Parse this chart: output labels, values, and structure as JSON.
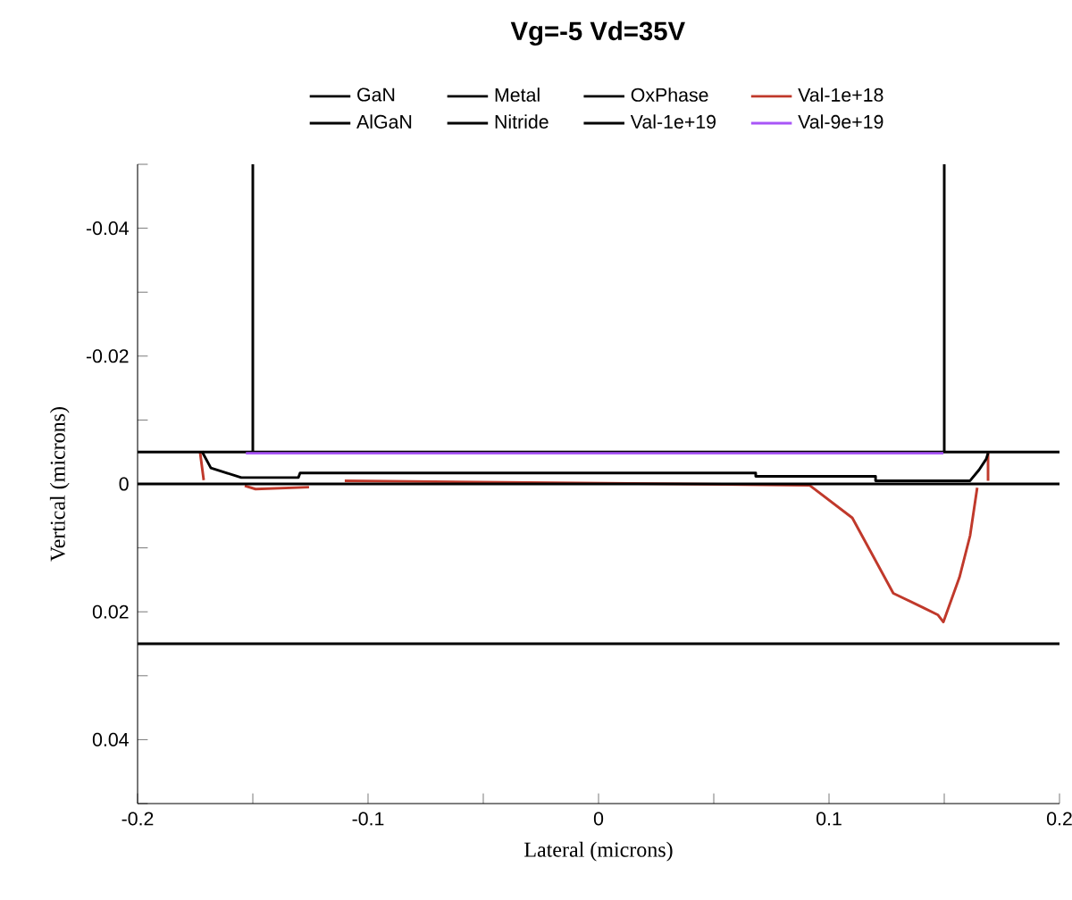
{
  "chart_data": {
    "type": "line",
    "title": "Vg=-5 Vd=35V",
    "xlabel": "Lateral (microns)",
    "ylabel": "Vertical (microns)",
    "xlim": [
      -0.2,
      0.2
    ],
    "ylim": [
      0.05,
      -0.05
    ],
    "xticks": [
      -0.2,
      {
        "value": -0.15,
        "label": null
      },
      -0.1,
      {
        "value": -0.05,
        "label": null
      },
      0,
      {
        "value": 0.05,
        "label": null
      },
      0.1,
      {
        "value": 0.15,
        "label": null
      },
      0.2
    ],
    "yticks": [
      {
        "value": -0.05,
        "label": null
      },
      -0.04,
      {
        "value": -0.03,
        "label": null
      },
      -0.02,
      {
        "value": -0.01,
        "label": null
      },
      0,
      {
        "value": 0.01,
        "label": null
      },
      0.02,
      {
        "value": 0.03,
        "label": null
      },
      0.04,
      {
        "value": 0.05,
        "label": null
      }
    ],
    "legend": "top",
    "series": [
      {
        "name": "GaN",
        "color": "#000000",
        "x": [
          -0.2,
          0.2
        ],
        "values": [
          0.025,
          0.025
        ]
      },
      {
        "name": "Metal",
        "color": "#000000",
        "x": [
          -0.15,
          -0.15
        ],
        "values": [
          -0.05,
          -0.005
        ]
      },
      {
        "name": "OxPhase",
        "color": "#000000",
        "x": [
          0.15,
          0.15
        ],
        "values": [
          -0.05,
          -0.005
        ]
      },
      {
        "name": "Val-1e+18",
        "color": "#c0392b",
        "x": [
          -0.1729,
          -0.1713,
          null,
          -0.1535,
          -0.1488,
          -0.1256,
          null,
          -0.1101,
          0.0915,
          0.1101,
          0.1178,
          0.1279,
          0.1411,
          0.1473,
          0.1496,
          0.1566,
          0.1612,
          0.1643,
          null,
          0.169,
          0.169
        ],
        "values": [
          -0.005,
          -0.0006,
          null,
          0.0003,
          0.0008,
          0.0005,
          null,
          -0.0005,
          0.0002,
          0.0053,
          0.0104,
          0.0171,
          0.0194,
          0.0205,
          0.0216,
          0.0146,
          0.0081,
          0.0006,
          null,
          -0.005,
          -0.0005
        ]
      },
      {
        "name": "AlGaN",
        "color": "#000000",
        "x": [
          -0.2,
          0.2
        ],
        "values": [
          0,
          0
        ]
      },
      {
        "name": "Nitride",
        "color": "#000000",
        "x": [
          -0.2,
          0.2
        ],
        "values": [
          -0.005,
          -0.005
        ]
      },
      {
        "name": "Val-1e+19",
        "color": "#000000",
        "x": [
          -0.1721,
          -0.1682,
          -0.1612,
          -0.155,
          -0.1302,
          -0.1295,
          0.0682,
          0.0682,
          0.1202,
          0.1202,
          0.1612,
          0.1651,
          0.1682,
          0.169
        ],
        "values": [
          -0.0051,
          -0.0025,
          -0.0017,
          -0.001,
          -0.001,
          -0.0017,
          -0.0017,
          -0.0012,
          -0.0012,
          -0.0005,
          -0.0005,
          -0.0022,
          -0.0039,
          -0.0048
        ]
      },
      {
        "name": "Val-9e+19",
        "color": "#a855f7",
        "x": [
          -0.153,
          0.1496
        ],
        "values": [
          -0.0048,
          -0.0048
        ]
      }
    ]
  }
}
